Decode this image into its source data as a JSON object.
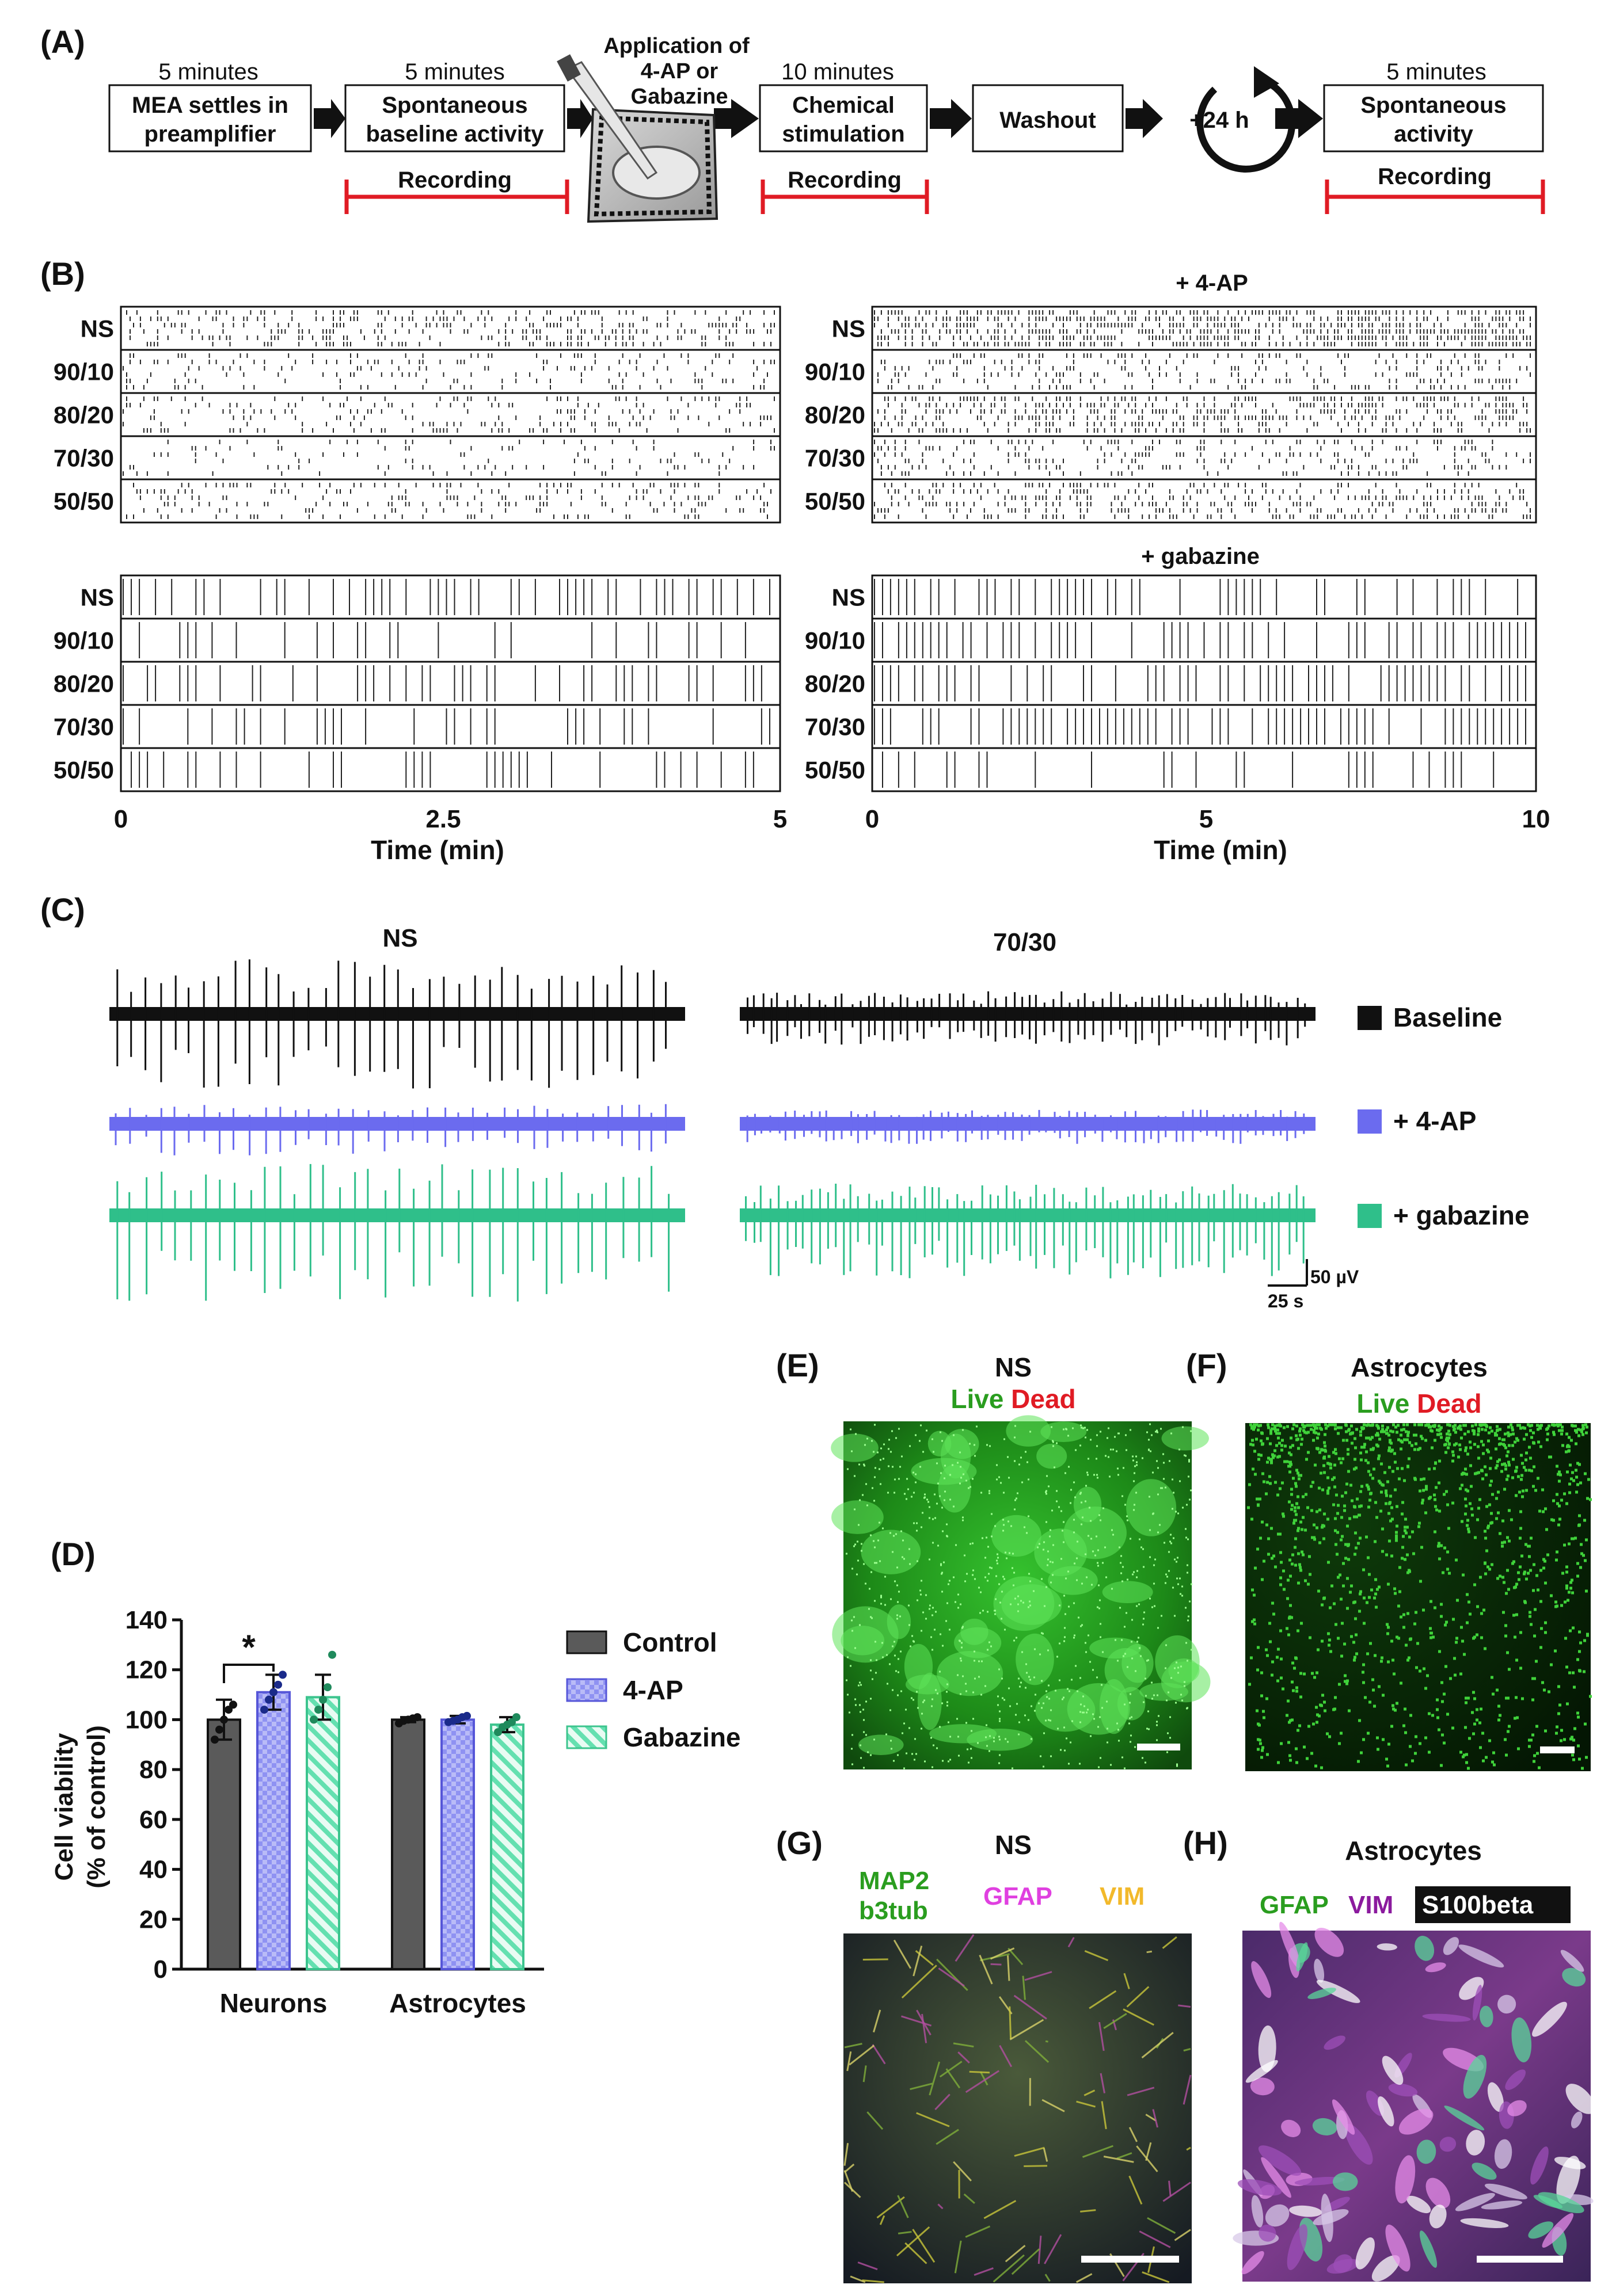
{
  "panelA": {
    "letter": "(A)",
    "durations": [
      "5 minutes",
      "5 minutes",
      "10 minutes",
      "5 minutes"
    ],
    "steps": [
      [
        "MEA settles in",
        "preamplifier"
      ],
      [
        "Spontaneous",
        "baseline activity"
      ],
      [
        "Chemical",
        "stimulation"
      ],
      [
        "Washout"
      ],
      [
        "+24 h"
      ],
      [
        "Spontaneous",
        "activity"
      ]
    ],
    "application": [
      "Application of",
      "4-AP or",
      "Gabazine"
    ],
    "recording": "Recording"
  },
  "panelB": {
    "letter": "(B)",
    "rows": [
      "NS",
      "90/10",
      "80/20",
      "70/30",
      "50/50"
    ],
    "title_4ap": "+ 4-AP",
    "title_gabazine": "+ gabazine",
    "left_ticks": [
      "0",
      "2.5",
      "5"
    ],
    "right_ticks": [
      "0",
      "5",
      "10"
    ],
    "xlabel": "Time (min)"
  },
  "panelC": {
    "letter": "(C)",
    "ns": "NS",
    "title_7030": "70/30",
    "legend": [
      {
        "label": "Baseline",
        "color": "#111111"
      },
      {
        "label": "+ 4-AP",
        "color": "#6b6bef"
      },
      {
        "label": "+ gabazine",
        "color": "#2fbf8a"
      }
    ],
    "scale_v": "50 µV",
    "scale_t": "25 s"
  },
  "panelD": {
    "letter": "(D)",
    "chart_data": {
      "type": "bar",
      "ylabel": "Cell viability",
      "ylabel2": "(% of control)",
      "ylim": [
        0,
        140
      ],
      "yticks": [
        "0",
        "20",
        "40",
        "60",
        "80",
        "100",
        "120",
        "140"
      ],
      "categories": [
        "Neurons",
        "Astrocytes"
      ],
      "series": [
        {
          "name": "Control",
          "values": [
            100,
            100
          ],
          "sd": [
            8,
            1
          ],
          "color": "#5a5a5a"
        },
        {
          "name": "4-AP",
          "values": [
            111,
            100
          ],
          "sd": [
            7,
            1.5
          ],
          "color": "#8f92f2"
        },
        {
          "name": "Gabazine",
          "values": [
            109,
            98
          ],
          "sd": [
            9,
            3
          ],
          "color": "#64e0b0"
        }
      ],
      "points": [
        [
          [
            92,
            96,
            100,
            104,
            106
          ],
          [
            98.5,
            99.5,
            100,
            100.5,
            101
          ]
        ],
        [
          [
            104,
            108,
            111,
            114,
            118
          ],
          [
            99,
            99.5,
            100,
            101,
            101.5
          ]
        ],
        [
          [
            100,
            104,
            108,
            113,
            126
          ],
          [
            95,
            97,
            98,
            99,
            101
          ]
        ]
      ],
      "annotation": "*"
    }
  },
  "panelE": {
    "letter": "(E)",
    "title": "NS",
    "live": "Live",
    "dead": "Dead"
  },
  "panelF": {
    "letter": "(F)",
    "title": "Astrocytes",
    "live": "Live",
    "dead": "Dead"
  },
  "panelG": {
    "letter": "(G)",
    "title": "NS",
    "m1": "MAP2",
    "m2": "b3tub",
    "m3": "GFAP",
    "m4": "VIM"
  },
  "panelH": {
    "letter": "(H)",
    "title": "Astrocytes",
    "m1": "GFAP",
    "m2": "VIM",
    "m3": "S100beta"
  },
  "colors": {
    "live": "#2a9d1f",
    "dead": "#e01b24",
    "magenta": "#e040e0",
    "yellow": "#f2b92b",
    "purple": "#8b1a9e",
    "recording": "#e01b24"
  }
}
